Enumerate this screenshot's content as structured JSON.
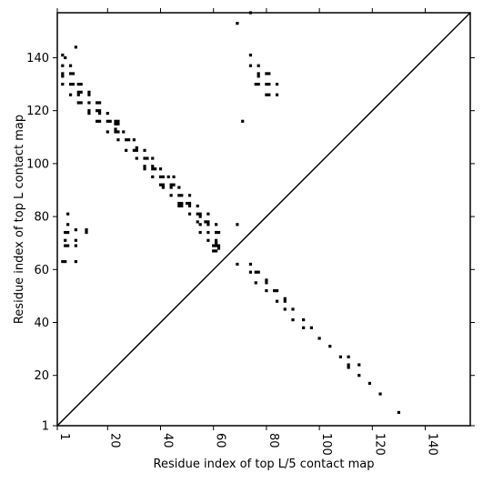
{
  "chart_data": {
    "type": "scatter",
    "xlabel": "Residue index of top L/5 contact map",
    "ylabel": "Residue index of top L contact map",
    "xlim": [
      1,
      157
    ],
    "ylim": [
      1,
      157
    ],
    "xticks": [
      1,
      20,
      40,
      60,
      80,
      100,
      120,
      140
    ],
    "yticks": [
      1,
      20,
      40,
      60,
      80,
      100,
      120,
      140
    ],
    "xtick_labels": [
      "1",
      "20",
      "40",
      "60",
      "80",
      "100",
      "120",
      "140"
    ],
    "ytick_labels": [
      "1",
      "20",
      "40",
      "60",
      "80",
      "100",
      "120",
      "140"
    ],
    "diagonal": true,
    "grid": false,
    "marker_color": "#000000",
    "upper_triangle_points": [
      [
        3,
        141
      ],
      [
        4,
        140
      ],
      [
        3,
        137
      ],
      [
        3,
        134
      ],
      [
        3,
        133
      ],
      [
        3,
        130
      ],
      [
        6,
        137
      ],
      [
        6,
        134
      ],
      [
        7,
        134
      ],
      [
        6,
        130
      ],
      [
        7,
        130
      ],
      [
        9,
        130
      ],
      [
        10,
        130
      ],
      [
        8,
        144
      ],
      [
        6,
        126
      ],
      [
        9,
        126
      ],
      [
        9,
        127
      ],
      [
        10,
        127
      ],
      [
        9,
        123
      ],
      [
        10,
        123
      ],
      [
        13,
        127
      ],
      [
        13,
        126
      ],
      [
        13,
        123
      ],
      [
        13,
        120
      ],
      [
        13,
        119
      ],
      [
        16,
        123
      ],
      [
        17,
        123
      ],
      [
        16,
        120
      ],
      [
        17,
        120
      ],
      [
        17,
        119
      ],
      [
        16,
        116
      ],
      [
        17,
        116
      ],
      [
        20,
        119
      ],
      [
        20,
        116
      ],
      [
        21,
        116
      ],
      [
        20,
        112
      ],
      [
        23,
        116
      ],
      [
        24,
        116
      ],
      [
        23,
        115
      ],
      [
        24,
        115
      ],
      [
        23,
        113
      ],
      [
        24,
        112
      ],
      [
        23,
        112
      ],
      [
        26,
        112
      ],
      [
        24,
        109
      ],
      [
        27,
        109
      ],
      [
        28,
        109
      ],
      [
        27,
        105
      ],
      [
        30,
        109
      ],
      [
        30,
        105
      ],
      [
        31,
        105
      ],
      [
        31,
        106
      ],
      [
        31,
        102
      ],
      [
        34,
        105
      ],
      [
        34,
        102
      ],
      [
        35,
        102
      ],
      [
        34,
        99
      ],
      [
        34,
        98
      ],
      [
        37,
        102
      ],
      [
        37,
        99
      ],
      [
        38,
        98
      ],
      [
        37,
        98
      ],
      [
        37,
        95
      ],
      [
        40,
        98
      ],
      [
        40,
        95
      ],
      [
        41,
        95
      ],
      [
        40,
        92
      ],
      [
        41,
        92
      ],
      [
        41,
        91
      ],
      [
        43,
        95
      ],
      [
        44,
        92
      ],
      [
        44,
        91
      ],
      [
        45,
        92
      ],
      [
        45,
        95
      ],
      [
        44,
        88
      ],
      [
        47,
        91
      ],
      [
        47,
        88
      ],
      [
        48,
        88
      ],
      [
        47,
        85
      ],
      [
        48,
        85
      ],
      [
        48,
        84
      ],
      [
        47,
        84
      ],
      [
        50,
        85
      ],
      [
        51,
        85
      ],
      [
        51,
        88
      ],
      [
        51,
        84
      ],
      [
        51,
        81
      ],
      [
        54,
        84
      ],
      [
        54,
        81
      ],
      [
        55,
        81
      ],
      [
        55,
        80
      ],
      [
        54,
        78
      ],
      [
        55,
        77
      ],
      [
        55,
        74
      ],
      [
        57,
        78
      ],
      [
        58,
        78
      ],
      [
        58,
        77
      ],
      [
        58,
        81
      ],
      [
        58,
        74
      ],
      [
        58,
        71
      ],
      [
        61,
        77
      ],
      [
        61,
        74
      ],
      [
        62,
        74
      ],
      [
        61,
        71
      ],
      [
        61,
        70
      ],
      [
        61,
        69
      ],
      [
        62,
        69
      ],
      [
        60,
        69
      ],
      [
        60,
        67
      ],
      [
        61,
        67
      ],
      [
        62,
        68
      ],
      [
        69,
        153
      ],
      [
        74,
        157
      ],
      [
        71,
        116
      ],
      [
        74,
        141
      ],
      [
        74,
        137
      ],
      [
        77,
        137
      ],
      [
        77,
        134
      ],
      [
        77,
        133
      ],
      [
        76,
        130
      ],
      [
        77,
        130
      ],
      [
        80,
        134
      ],
      [
        81,
        134
      ],
      [
        80,
        130
      ],
      [
        81,
        130
      ],
      [
        84,
        130
      ],
      [
        80,
        126
      ],
      [
        81,
        126
      ],
      [
        84,
        126
      ]
    ],
    "lower_triangle_points": [
      [
        5,
        81
      ],
      [
        5,
        77
      ],
      [
        4,
        74
      ],
      [
        5,
        74
      ],
      [
        8,
        75
      ],
      [
        12,
        75
      ],
      [
        12,
        74
      ],
      [
        4,
        71
      ],
      [
        4,
        69
      ],
      [
        5,
        69
      ],
      [
        8,
        71
      ],
      [
        8,
        69
      ],
      [
        3,
        63
      ],
      [
        4,
        63
      ],
      [
        8,
        63
      ],
      [
        69,
        77
      ],
      [
        69,
        62
      ],
      [
        74,
        62
      ],
      [
        74,
        59
      ],
      [
        76,
        59
      ],
      [
        77,
        59
      ],
      [
        76,
        55
      ],
      [
        80,
        56
      ],
      [
        80,
        55
      ],
      [
        80,
        52
      ],
      [
        84,
        52
      ],
      [
        83,
        52
      ],
      [
        84,
        48
      ],
      [
        87,
        49
      ],
      [
        87,
        48
      ],
      [
        87,
        45
      ],
      [
        90,
        45
      ],
      [
        90,
        41
      ],
      [
        94,
        41
      ],
      [
        94,
        38
      ],
      [
        97,
        38
      ],
      [
        100,
        34
      ],
      [
        104,
        31
      ],
      [
        108,
        27
      ],
      [
        111,
        27
      ],
      [
        111,
        24
      ],
      [
        111,
        23
      ],
      [
        115,
        24
      ],
      [
        115,
        20
      ],
      [
        119,
        17
      ],
      [
        123,
        13
      ],
      [
        130,
        6
      ]
    ]
  }
}
